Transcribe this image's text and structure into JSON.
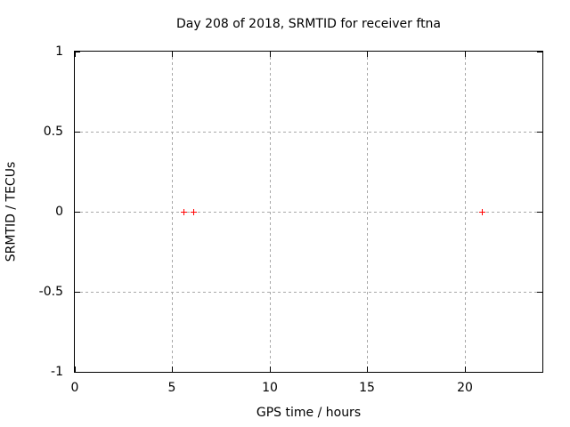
{
  "window": {
    "background": "#ffffff"
  },
  "chart_data": {
    "type": "scatter",
    "title": "Day 208 of 2018, SRMTID for receiver ftna",
    "xlabel": "GPS time / hours",
    "ylabel": "SRMTID / TECUs",
    "xlim": [
      0,
      24
    ],
    "ylim": [
      -1,
      1
    ],
    "xticks": [
      {
        "value": 0,
        "label": "0"
      },
      {
        "value": 5,
        "label": "5"
      },
      {
        "value": 10,
        "label": "10"
      },
      {
        "value": 15,
        "label": "15"
      },
      {
        "value": 20,
        "label": "20"
      }
    ],
    "yticks": [
      {
        "value": 1,
        "label": "1"
      },
      {
        "value": 0.5,
        "label": "0.5"
      },
      {
        "value": 0,
        "label": "0"
      },
      {
        "value": -0.5,
        "label": "-0.5"
      },
      {
        "value": -1,
        "label": "-1"
      }
    ],
    "grid": true,
    "legend_position": "none",
    "series": [
      {
        "name": "SRMTID",
        "marker": "plus",
        "color": "#ff0000",
        "points": [
          {
            "x": 5.6,
            "y": 0
          },
          {
            "x": 6.1,
            "y": 0
          },
          {
            "x": 20.9,
            "y": 0
          }
        ]
      }
    ],
    "colors": {
      "background": "#ffffff",
      "axis_border": "#000000",
      "grid": "#a8a8a8",
      "text": "#000000",
      "marker": "#ff0000"
    }
  }
}
